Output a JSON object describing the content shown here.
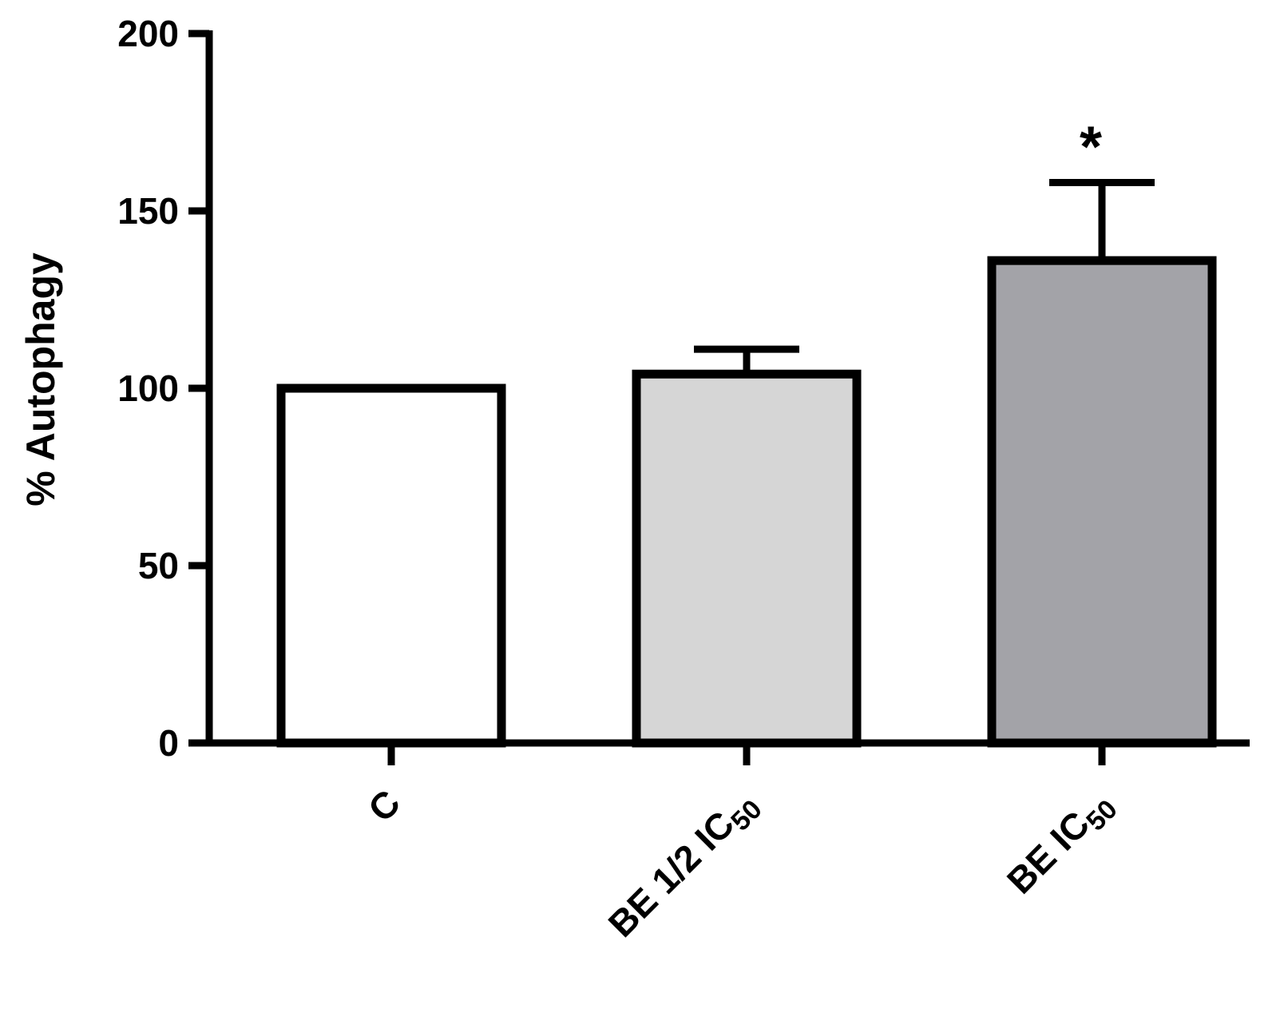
{
  "chart_data": {
    "type": "bar",
    "title": "",
    "xlabel": "",
    "ylabel": "% Autophagy",
    "ylim": [
      0,
      200
    ],
    "yticks": [
      0,
      50,
      100,
      150,
      200
    ],
    "grid": false,
    "categories": [
      {
        "main": "C",
        "sub": ""
      },
      {
        "main": "BE 1/2 IC",
        "sub": "50"
      },
      {
        "main": "BE IC",
        "sub": "50"
      }
    ],
    "values": [
      100,
      104,
      136
    ],
    "errors": [
      0,
      7,
      22
    ],
    "colors": [
      "#ffffff",
      "#d6d6d6",
      "#a3a3a8"
    ],
    "annotations": [
      "",
      "",
      "*"
    ]
  }
}
